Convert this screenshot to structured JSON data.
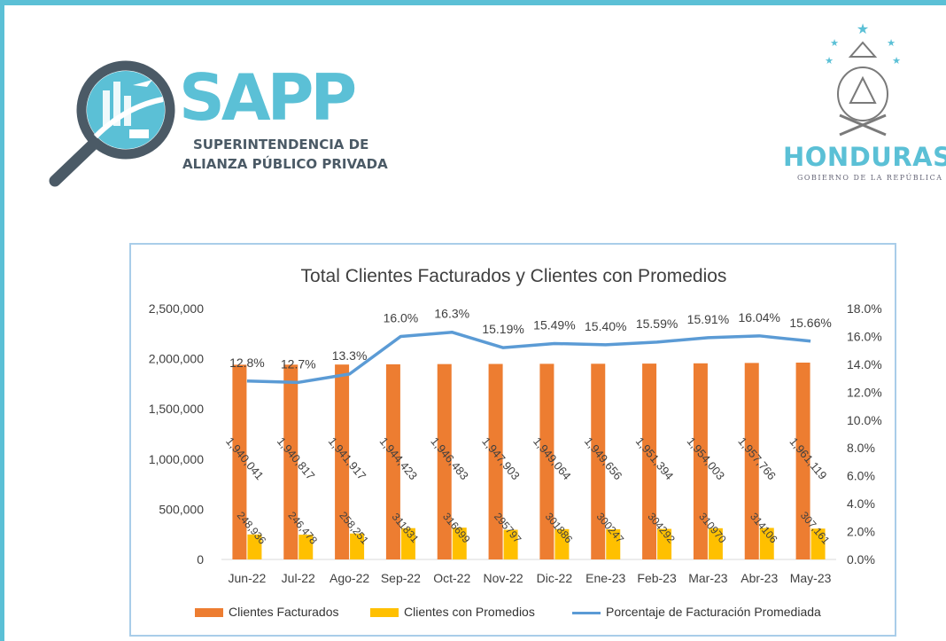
{
  "logo": {
    "sapp_word": "SAPP",
    "sapp_line1": "SUPERINTENDENCIA DE",
    "sapp_line2": "ALIANZA PÚBLICO PRIVADA",
    "honduras_word": "HONDURAS",
    "honduras_sub": "GOBIERNO DE LA REPÚBLICA"
  },
  "colors": {
    "frame": "#5bc0d6",
    "bar_facturados": "#ed7d31",
    "bar_promedios": "#ffc000",
    "line_porcentaje": "#5b9bd5"
  },
  "chart_data": {
    "type": "bar",
    "title": "Total Clientes Facturados y Clientes con Promedios",
    "categories": [
      "Jun-22",
      "Jul-22",
      "Ago-22",
      "Sep-22",
      "Oct-22",
      "Nov-22",
      "Dic-22",
      "Ene-23",
      "Feb-23",
      "Mar-23",
      "Abr-23",
      "May-23"
    ],
    "series": [
      {
        "name": "Clientes Facturados",
        "type": "bar",
        "axis": "left",
        "values": [
          1940041,
          1940817,
          1941917,
          1944423,
          1946483,
          1947903,
          1949064,
          1949656,
          1951394,
          1954003,
          1957766,
          1961119
        ],
        "labels": [
          "1,940,041",
          "1,940,817",
          "1,941,917",
          "1,944,423",
          "1,946,483",
          "1,947,903",
          "1,949,064",
          "1,949,656",
          "1,951,394",
          "1,954,003",
          "1,957,766",
          "1,961,119"
        ]
      },
      {
        "name": "Clientes con Promedios",
        "type": "bar",
        "axis": "left",
        "values": [
          248936,
          246478,
          258251,
          311831,
          316699,
          295797,
          301886,
          300247,
          304292,
          310970,
          314106,
          307161
        ],
        "labels": [
          "248,936",
          "246,478",
          "258,251",
          "311831",
          "316699",
          "295797",
          "301886",
          "300247",
          "304292",
          "310970",
          "314106",
          "307,161"
        ]
      },
      {
        "name": "Porcentaje de Facturación Promediada",
        "type": "line",
        "axis": "right",
        "values": [
          12.8,
          12.7,
          13.3,
          16.0,
          16.3,
          15.19,
          15.49,
          15.4,
          15.59,
          15.91,
          16.04,
          15.66
        ],
        "labels": [
          "12.8%",
          "12.7%",
          "13.3%",
          "16.0%",
          "16.3%",
          "15.19%",
          "15.49%",
          "15.40%",
          "15.59%",
          "15.91%",
          "16.04%",
          "15.66%"
        ]
      }
    ],
    "y_left": {
      "min": 0,
      "max": 2500000,
      "ticks": [
        "0",
        "500,000",
        "1,000,000",
        "1,500,000",
        "2,000,000",
        "2,500,000"
      ]
    },
    "y_right": {
      "min": 0,
      "max": 18,
      "ticks": [
        "0.0%",
        "2.0%",
        "4.0%",
        "6.0%",
        "8.0%",
        "10.0%",
        "12.0%",
        "14.0%",
        "16.0%",
        "18.0%"
      ]
    },
    "grid": false,
    "legend_position": "bottom"
  }
}
